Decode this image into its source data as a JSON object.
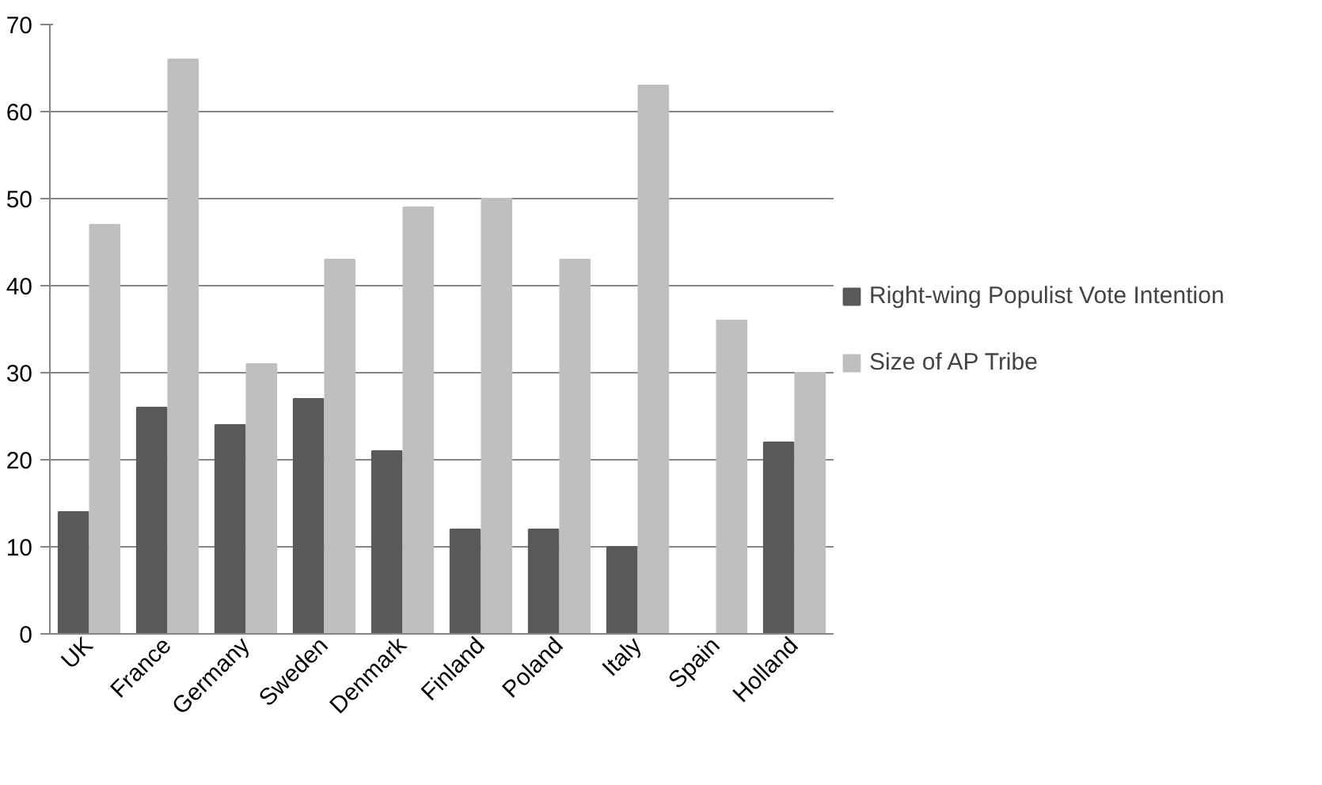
{
  "chart_data": {
    "type": "bar",
    "categories": [
      "UK",
      "France",
      "Germany",
      "Sweden",
      "Denmark",
      "Finland",
      "Poland",
      "Italy",
      "Spain",
      "Holland"
    ],
    "series": [
      {
        "name": "Right-wing Populist Vote Intention",
        "color": "#595959",
        "values": [
          14,
          26,
          24,
          27,
          21,
          12,
          12,
          10,
          null,
          22
        ]
      },
      {
        "name": "Size of AP Tribe",
        "color": "#bfbfbf",
        "values": [
          47,
          66,
          31,
          43,
          49,
          50,
          43,
          63,
          36,
          30
        ]
      }
    ],
    "ylim": [
      0,
      70
    ],
    "yticks": [
      0,
      10,
      20,
      30,
      40,
      50,
      60,
      70
    ],
    "grid": "y",
    "legend": "right"
  }
}
